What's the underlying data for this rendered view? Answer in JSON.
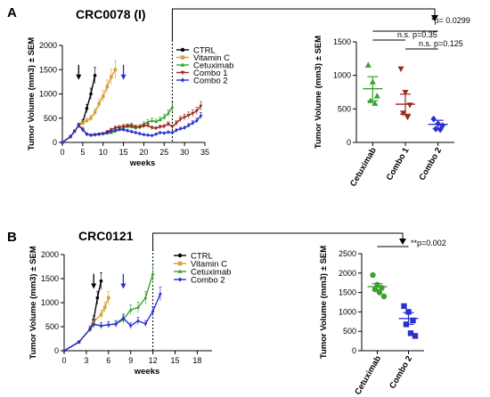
{
  "chart_data": [
    {
      "type": "line",
      "panel_label": "A",
      "title": "CRC0078 (I)",
      "xlabel": "weeks",
      "ylabel": "Tumor Volume (mm3) ± SEM",
      "xlim": [
        0,
        35
      ],
      "ylim": [
        0,
        2000
      ],
      "xticks": [
        0,
        5,
        10,
        15,
        20,
        25,
        30,
        35
      ],
      "yticks": [
        0,
        500,
        1000,
        1500,
        2000
      ],
      "legend_position": "top-right",
      "series": [
        {
          "name": "CTRL",
          "color": "#000000",
          "marker": "circle",
          "x": [
            0,
            2,
            3,
            4,
            5,
            6,
            7,
            8
          ],
          "y": [
            0,
            120,
            230,
            350,
            420,
            700,
            1000,
            1380
          ]
        },
        {
          "name": "Vitamin C",
          "color": "#d8a033",
          "marker": "square",
          "x": [
            0,
            2,
            3,
            4,
            5,
            6,
            7,
            8,
            9,
            10,
            11,
            12,
            13
          ],
          "y": [
            0,
            120,
            230,
            350,
            400,
            450,
            500,
            620,
            800,
            950,
            1150,
            1350,
            1500
          ]
        },
        {
          "name": "Cetuximab",
          "color": "#3aa12e",
          "marker": "triangle",
          "x": [
            0,
            2,
            3,
            4,
            5,
            6,
            7,
            8,
            9,
            10,
            11,
            12,
            13,
            14,
            15,
            16,
            17,
            18,
            19,
            20,
            21,
            22,
            23,
            24,
            25,
            26,
            27
          ],
          "y": [
            0,
            120,
            230,
            350,
            280,
            170,
            150,
            160,
            170,
            180,
            190,
            200,
            230,
            260,
            300,
            330,
            320,
            300,
            330,
            380,
            420,
            450,
            430,
            470,
            520,
            600,
            730
          ]
        },
        {
          "name": "Combo 1",
          "color": "#9b2a1f",
          "marker": "triangle-down",
          "x": [
            0,
            2,
            3,
            4,
            5,
            6,
            7,
            8,
            9,
            10,
            11,
            12,
            13,
            14,
            15,
            16,
            17,
            18,
            19,
            20,
            21,
            22,
            23,
            24,
            25,
            26,
            27,
            28,
            29,
            30,
            31,
            32,
            33,
            34
          ],
          "y": [
            0,
            120,
            230,
            350,
            260,
            170,
            150,
            160,
            170,
            180,
            220,
            260,
            300,
            310,
            330,
            340,
            350,
            320,
            310,
            340,
            350,
            300,
            290,
            320,
            330,
            380,
            320,
            400,
            480,
            520,
            560,
            600,
            650,
            750
          ]
        },
        {
          "name": "Combo 2",
          "color": "#2b2fcf",
          "marker": "diamond",
          "x": [
            0,
            2,
            3,
            4,
            5,
            6,
            7,
            8,
            9,
            10,
            11,
            12,
            13,
            14,
            15,
            16,
            17,
            18,
            19,
            20,
            21,
            22,
            23,
            24,
            25,
            26,
            27,
            28,
            29,
            30,
            31,
            32,
            33,
            34
          ],
          "y": [
            0,
            120,
            230,
            350,
            260,
            170,
            150,
            160,
            170,
            180,
            200,
            230,
            250,
            270,
            260,
            240,
            220,
            200,
            180,
            160,
            150,
            140,
            170,
            200,
            190,
            210,
            200,
            250,
            280,
            300,
            350,
            400,
            450,
            550
          ]
        }
      ],
      "arrows": [
        {
          "x": 4,
          "color": "#000000"
        },
        {
          "x": 15,
          "color": "#2b2fcf"
        }
      ],
      "dashed_line_x": 27
    },
    {
      "type": "scatter",
      "title": "",
      "xlabel": "",
      "ylabel": "Tumor Volume (mm3) ± SEM",
      "ylim": [
        0,
        1500
      ],
      "yticks": [
        0,
        500,
        1000,
        1500
      ],
      "categories": [
        "Cetuximab",
        "Combo 1",
        "Combo 2"
      ],
      "colors": [
        "#3aa12e",
        "#9b2a1f",
        "#2b2fcf"
      ],
      "markers": [
        "triangle",
        "triangle-down",
        "diamond"
      ],
      "points": [
        [
          1150,
          900,
          690,
          620,
          580
        ],
        [
          1100,
          750,
          560,
          440,
          380
        ],
        [
          350,
          280,
          250,
          200,
          190
        ]
      ],
      "mean": [
        800,
        570,
        270
      ],
      "sem": [
        180,
        150,
        60
      ],
      "annotations": [
        {
          "text": "*p= 0.0299"
        },
        {
          "text": "n.s. p=0.35"
        },
        {
          "text": "n.s. p=0.125"
        }
      ]
    },
    {
      "type": "line",
      "panel_label": "B",
      "title": "CRC0121",
      "xlabel": "weeks",
      "ylabel": "Tumor Volume (mm3) ± SEM",
      "xlim": [
        0,
        20
      ],
      "ylim": [
        0,
        2000
      ],
      "xticks": [
        0,
        3,
        6,
        9,
        12,
        15,
        18
      ],
      "yticks": [
        0,
        500,
        1000,
        1500,
        2000
      ],
      "legend_position": "top-right",
      "series": [
        {
          "name": "CTRL",
          "color": "#000000",
          "marker": "circle",
          "x": [
            0,
            2,
            3.5,
            4,
            4.5,
            5
          ],
          "y": [
            0,
            180,
            450,
            650,
            1100,
            1450
          ]
        },
        {
          "name": "Vitamin C",
          "color": "#d8a033",
          "marker": "square",
          "x": [
            0,
            2,
            3.5,
            4,
            5,
            5.5,
            6
          ],
          "y": [
            0,
            180,
            450,
            600,
            750,
            900,
            1100
          ]
        },
        {
          "name": "Cetuximab",
          "color": "#3aa12e",
          "marker": "triangle",
          "x": [
            0,
            2,
            3.5,
            4,
            5,
            6,
            7,
            8,
            9,
            10,
            11,
            12
          ],
          "y": [
            0,
            180,
            450,
            550,
            520,
            540,
            550,
            650,
            850,
            900,
            1100,
            1600
          ]
        },
        {
          "name": "Combo 2",
          "color": "#2b2fcf",
          "marker": "diamond",
          "x": [
            0,
            2,
            3.5,
            4,
            5,
            6,
            7,
            8,
            9,
            10,
            11,
            12,
            13
          ],
          "y": [
            0,
            180,
            450,
            550,
            520,
            540,
            560,
            680,
            520,
            620,
            560,
            820,
            1180
          ]
        }
      ],
      "arrows": [
        {
          "x": 4,
          "color": "#000000"
        },
        {
          "x": 8,
          "color": "#2b2fcf"
        }
      ],
      "dashed_line_x": 12
    },
    {
      "type": "scatter",
      "title": "",
      "xlabel": "",
      "ylabel": "Tumor Volume (mm3) ± SEM",
      "ylim": [
        0,
        2500
      ],
      "yticks": [
        0,
        500,
        1000,
        1500,
        2000,
        2500
      ],
      "categories": [
        "Cetuximab",
        "Combo 2"
      ],
      "colors": [
        "#3aa12e",
        "#2b2fcf"
      ],
      "markers": [
        "circle",
        "square"
      ],
      "points": [
        [
          1950,
          1700,
          1620,
          1580,
          1500,
          1400
        ],
        [
          1150,
          1000,
          780,
          680,
          450,
          380
        ]
      ],
      "mean": [
        1650,
        830
      ],
      "sem": [
        80,
        150
      ],
      "annotations": [
        {
          "text": "**p=0.002"
        }
      ]
    }
  ]
}
